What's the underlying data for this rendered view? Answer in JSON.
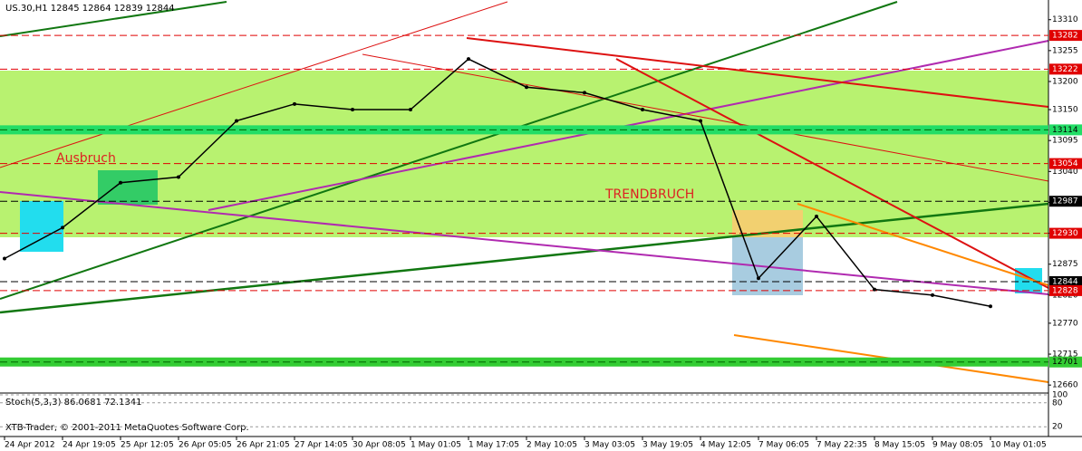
{
  "chart_data": {
    "type": "line",
    "title": "US.30,H1  12845 12864 12839 12844",
    "categories": [
      "24 Apr 2012",
      "24 Apr 19:05",
      "25 Apr 12:05",
      "26 Apr 05:05",
      "26 Apr 21:05",
      "27 Apr 14:05",
      "30 Apr 08:05",
      "1 May 01:05",
      "1 May 17:05",
      "2 May 10:05",
      "3 May 03:05",
      "3 May 19:05",
      "4 May 12:05",
      "7 May 06:05",
      "7 May 22:35",
      "8 May 15:05",
      "9 May 08:05",
      "10 May 01:05"
    ],
    "values": [
      12885,
      12940,
      13020,
      13030,
      13130,
      13160,
      13150,
      13150,
      13240,
      13190,
      13180,
      13150,
      13130,
      12850,
      12960,
      12830,
      12820,
      12800
    ],
    "color": "#000000",
    "ylim": [
      12649,
      13345
    ],
    "yticks": [
      13310,
      13255,
      13200,
      13150,
      13095,
      13040,
      12985,
      12930,
      12875,
      12820,
      12770,
      12715,
      12660
    ],
    "levels": [
      {
        "value": 13282,
        "color": "#e00000"
      },
      {
        "value": 13222,
        "color": "#e00000"
      },
      {
        "value": 13114,
        "color": "#22dd66"
      },
      {
        "value": 13054,
        "color": "#e00000"
      },
      {
        "value": 12987,
        "color": "#000000"
      },
      {
        "value": 12930,
        "color": "#e00000"
      },
      {
        "value": 12844,
        "color": "#000000"
      },
      {
        "value": 12828,
        "color": "#e00000"
      },
      {
        "value": 12701,
        "color": "#33cc33"
      }
    ],
    "annotations": [
      "Ausbruch",
      "TRENDBRUCH"
    ],
    "indicator": {
      "label": "Stoch(5,3,3) 86.0681 72.1341",
      "ylim": [
        0,
        100
      ],
      "yticks": [
        100,
        80,
        20
      ]
    },
    "footer": "XTB-Trader, © 2001-2011 MetaQuotes Software Corp."
  }
}
